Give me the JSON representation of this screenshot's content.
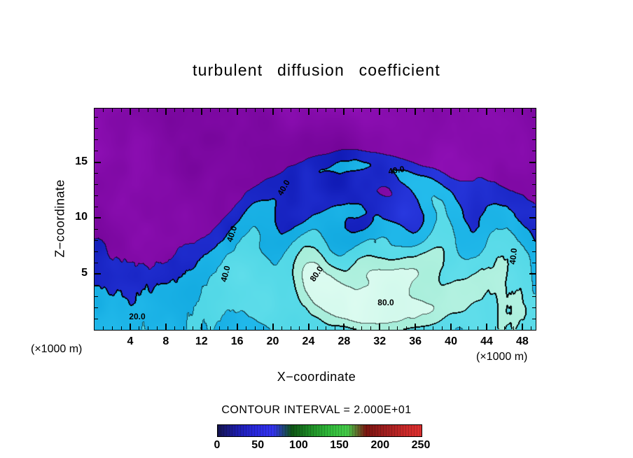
{
  "chart_data": {
    "type": "filled_contour",
    "title": "turbulent diffusion coefficient",
    "xlabel": "X−coordinate",
    "ylabel": "Z−coordinate",
    "x_unit": "(×1000 m)",
    "y_unit": "(×1000 m)",
    "x_range": [
      0,
      49.5
    ],
    "z_range": [
      0,
      19.8
    ],
    "x_ticks": [
      4,
      8,
      12,
      16,
      20,
      24,
      28,
      32,
      36,
      40,
      44,
      48
    ],
    "y_ticks": [
      5,
      10,
      15
    ],
    "x_minor_step": 1,
    "y_minor_step": 1,
    "contour_interval": 20,
    "contour_interval_text": "CONTOUR INTERVAL = 2.000E+01",
    "labeled_levels": [
      20,
      40,
      80
    ],
    "contour_labels": [
      {
        "text": "40.0",
        "fx": 0.4286,
        "fy": 0.3576,
        "rot": -60
      },
      {
        "text": "40.0",
        "fx": 0.6841,
        "fy": 0.2785,
        "rot": -10
      },
      {
        "text": "40.0",
        "fx": 0.3111,
        "fy": 0.5665,
        "rot": -72
      },
      {
        "text": "40.0",
        "fx": 0.2968,
        "fy": 0.7468,
        "rot": -76
      },
      {
        "text": "40.0",
        "fx": 0.9492,
        "fy": 0.6677,
        "rot": -84
      },
      {
        "text": "80.0",
        "fx": 0.5032,
        "fy": 0.7468,
        "rot": -56
      },
      {
        "text": "80.0",
        "fx": 0.6603,
        "fy": 0.8766,
        "rot": 0
      },
      {
        "text": "20.0",
        "fx": 0.0968,
        "fy": 0.9399,
        "rot": 0
      }
    ],
    "band_colors": [
      [
        "#6E0292",
        "#9512BC"
      ],
      [
        "#0D17B0",
        "#2E3FE8"
      ],
      [
        "#0FA6DE",
        "#2AC2F0"
      ],
      [
        "#49D4E4",
        "#66E0EC"
      ],
      [
        "#9FEBD6",
        "#B7F3E3"
      ],
      [
        "#CDF8EA",
        "#E0FCF2"
      ]
    ],
    "colorbar": {
      "min": 0,
      "max": 250,
      "ticks": [
        0,
        50,
        100,
        150,
        200,
        250
      ],
      "gradient": [
        "#14144E",
        "#1C1CA8",
        "#2828DC",
        "#3333EE",
        "#0E5415",
        "#1E8C26",
        "#30B93A",
        "#45CC4A",
        "#7A1510",
        "#9E1E1E",
        "#C52828",
        "#E03030"
      ]
    },
    "field_model": {
      "base": {
        "amp": 52,
        "z_scale": 8.5
      },
      "blobs": [
        {
          "amp": 55,
          "cx": 31,
          "cz": 4.5,
          "sx": 12,
          "sz": 5,
          "tilt": 0
        },
        {
          "amp": 30,
          "cx": 16,
          "cz": 8,
          "sx": 3.2,
          "sz": 6.5,
          "tilt": 0.45
        },
        {
          "amp": 34,
          "cx": 47,
          "cz": 5,
          "sx": 3.5,
          "sz": 7,
          "tilt": 0.1
        },
        {
          "amp": -24,
          "cx": 8,
          "cz": 11,
          "sx": 7,
          "sz": 5,
          "tilt": 0.2
        },
        {
          "amp": 18,
          "cx": 27,
          "cz": 14,
          "sx": 6,
          "sz": 2.5,
          "tilt": -0.3
        },
        {
          "amp": 24,
          "cx": 41,
          "cz": 11.5,
          "sx": 5,
          "sz": 3,
          "tilt": -0.6
        }
      ],
      "vortex": {
        "cx": 31.5,
        "cz": 8,
        "z_stretch": 1.5,
        "r0": 9,
        "rw": 3.6,
        "ring_amp": 18,
        "arm_amp": 13,
        "twist": 0.9
      },
      "noise": {
        "amp": 11,
        "scale": 0.28
      },
      "streaks": {
        "amp": 15,
        "xfreq": 1.3,
        "zfreq": 0.15,
        "cx1": 6,
        "w1": 8,
        "cx2": 47,
        "w2": 4,
        "right_factor": 0.7,
        "z_top": 14
      }
    }
  }
}
